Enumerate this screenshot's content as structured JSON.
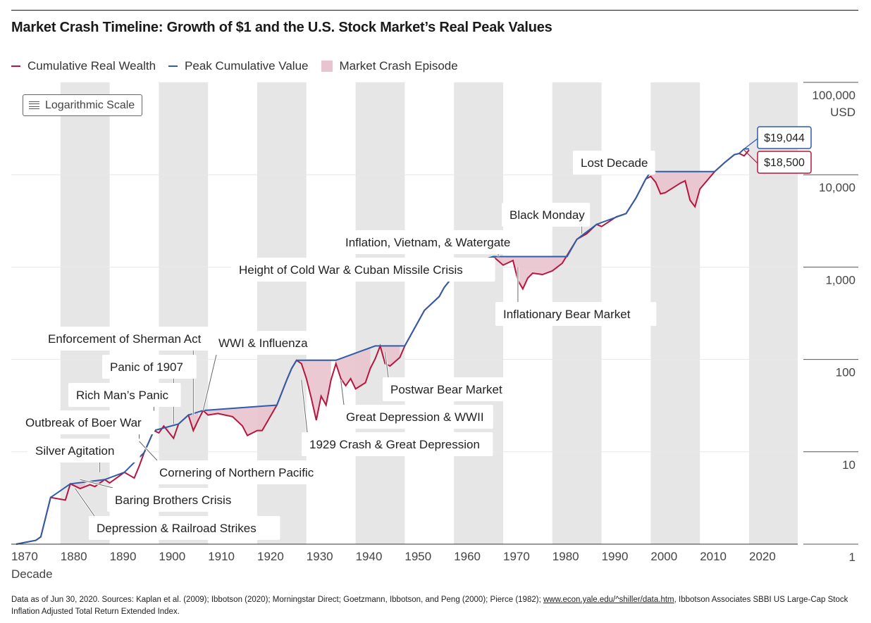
{
  "title": "Market Crash Timeline: Growth of $1 and the U.S. Stock Market’s Real Peak Values",
  "legend": [
    {
      "label": "Cumulative Real Wealth",
      "color": "#b5163f",
      "kind": "line"
    },
    {
      "label": "Peak Cumulative Value",
      "color": "#2f5ca8",
      "kind": "line"
    },
    {
      "label": "Market Crash Episode",
      "color": "#e9c3cd",
      "kind": "box"
    }
  ],
  "scale_button": {
    "label": "Logarithmic Scale",
    "icon": "list-icon"
  },
  "footnote": {
    "text_before": "Data as of Jun 30, 2020. Sources: Kaplan et al. (2009); Ibbotson (2020); Morningstar Direct; Goetzmann, Ibbotson, and Peng (2000); Pierce (1982); ",
    "link": "www.econ.yale.edu/^shiller/data.htm",
    "text_after": ", Ibbotson Associates SBBI US Large-Cap Stock Inflation Adjusted Total Return Extended Index."
  },
  "chart_data": {
    "type": "line",
    "y_scale": "log",
    "ylim": [
      1,
      100000
    ],
    "xlim": [
      1870,
      2030
    ],
    "xlabel": "Decade",
    "ylabel_unit": "USD",
    "x_ticks": [
      "1870",
      "1880",
      "1890",
      "1900",
      "1910",
      "1920",
      "1930",
      "1940",
      "1950",
      "1960",
      "1970",
      "1980",
      "1990",
      "2000",
      "2010",
      "2020"
    ],
    "y_ticks": [
      {
        "value": 1,
        "label": "1"
      },
      {
        "value": 10,
        "label": "10"
      },
      {
        "value": 100,
        "label": "100"
      },
      {
        "value": 1000,
        "label": "1,000"
      },
      {
        "value": 10000,
        "label": "10,000"
      },
      {
        "value": 100000,
        "label": "100,000"
      }
    ],
    "grid": "horizontal",
    "legend_position": "top-left",
    "colors": {
      "wealth": "#b5163f",
      "peak": "#2f5ca8",
      "crash": "#e9c3cd",
      "decade_band": "#e6e6e6"
    },
    "series": [
      {
        "name": "Cumulative Real Wealth",
        "key": "wealth",
        "x": [
          1871,
          1873,
          1875,
          1876,
          1878,
          1881,
          1882,
          1884,
          1886,
          1887,
          1889,
          1890,
          1893,
          1895,
          1896,
          1897,
          1899,
          1900,
          1901,
          1903,
          1904,
          1906,
          1907,
          1908,
          1909,
          1910,
          1912,
          1915,
          1917,
          1918,
          1920,
          1921,
          1924,
          1926,
          1927,
          1928,
          1929,
          1930,
          1931,
          1932,
          1933,
          1934,
          1935,
          1936,
          1937,
          1938,
          1939,
          1940,
          1942,
          1943,
          1944,
          1945,
          1946,
          1947,
          1949,
          1950,
          1954,
          1957,
          1958,
          1961,
          1962,
          1964,
          1966,
          1968,
          1969,
          1970,
          1972,
          1973,
          1974,
          1975,
          1976,
          1978,
          1980,
          1982,
          1985,
          1987,
          1989,
          1990,
          1993,
          1995,
          1997,
          1999,
          2000,
          2001,
          2002,
          2003,
          2006,
          2007,
          2008,
          2009,
          2010,
          2013,
          2015,
          2017,
          2018,
          2019,
          2020
        ],
        "y": [
          1.0,
          1.05,
          1.1,
          1.2,
          3.2,
          3.0,
          4.5,
          4.0,
          4.4,
          4.2,
          5.0,
          4.6,
          6.0,
          5.2,
          7.0,
          9.8,
          17.0,
          16.0,
          19.0,
          14.0,
          20.0,
          25.0,
          17.0,
          22.0,
          28.0,
          25.0,
          26.0,
          24.0,
          19.0,
          15.0,
          17.0,
          17.0,
          32.0,
          60.0,
          80.0,
          98.0,
          90.0,
          62.0,
          38.0,
          22.0,
          40.0,
          32.0,
          60.0,
          90.0,
          62.0,
          52.0,
          62.0,
          48.0,
          56.0,
          80.0,
          102.0,
          140.0,
          90.0,
          85.0,
          105.0,
          140.0,
          340.0,
          480.0,
          600.0,
          950.0,
          800.0,
          1010.0,
          1200.0,
          1300.0,
          1170.0,
          1050.0,
          1180.0,
          720.0,
          580.0,
          760.0,
          860.0,
          830.0,
          910.0,
          1100.0,
          2000.0,
          2300.0,
          2900.0,
          2750.0,
          3500.0,
          3800.0,
          5600.0,
          9000.0,
          9600.0,
          8300.0,
          6200.0,
          6400.0,
          8100.0,
          8600.0,
          5300.0,
          4500.0,
          7000.0,
          10800.0,
          13500.0,
          16500.0,
          17000.0,
          16000.0,
          18500.0
        ]
      },
      {
        "name": "Peak Cumulative Value",
        "key": "peak",
        "x": [
          1871,
          1875,
          1876,
          1878,
          1882,
          1889,
          1893,
          1897,
          1899,
          1904,
          1906,
          1909,
          1924,
          1926,
          1927,
          1928,
          1929,
          1936,
          1944,
          1945,
          1946,
          1949,
          1950,
          1954,
          1957,
          1958,
          1961,
          1964,
          1966,
          1968,
          1972,
          1983,
          1985,
          1989,
          1995,
          1997,
          1999,
          2000,
          2013,
          2015,
          2017,
          2018,
          2019,
          2020
        ],
        "y": [
          1.0,
          1.1,
          1.2,
          3.2,
          4.5,
          5.0,
          6.0,
          9.8,
          17.0,
          20.0,
          25.0,
          28.0,
          32.0,
          60.0,
          80.0,
          98.0,
          98.0,
          98.0,
          140.0,
          140.0,
          140.0,
          140.0,
          140.0,
          340.0,
          480.0,
          600.0,
          950.0,
          1010.0,
          1200.0,
          1300.0,
          1300.0,
          1300.0,
          2000.0,
          2900.0,
          3800.0,
          5600.0,
          9000.0,
          10800.0,
          10800.0,
          13500.0,
          16500.0,
          17000.0,
          19044.0,
          19044.0
        ]
      }
    ],
    "crash_episodes": [
      {
        "name": "Depression & Railroad Strikes",
        "start": 1876,
        "end": 1878
      },
      {
        "name": "Baring Brothers Crisis",
        "start": 1882,
        "end": 1885
      },
      {
        "name": "Silver Agitation",
        "start": 1887,
        "end": 1889
      },
      {
        "name": "Cornering of Northern Pacific",
        "start": 1897,
        "end": 1899
      },
      {
        "name": "Rich Man's Panic",
        "start": 1901,
        "end": 1902
      },
      {
        "name": "Panic of 1907",
        "start": 1906,
        "end": 1908
      },
      {
        "name": "Enforcement of Sherman Act",
        "start": 1909,
        "end": 1910
      },
      {
        "name": "WWI & Influenza",
        "start": 1910,
        "end": 1924
      },
      {
        "name": "1929 Crash & Great Depression",
        "start": 1928,
        "end": 1935
      },
      {
        "name": "Great Depression & WWII",
        "start": 1936,
        "end": 1943
      },
      {
        "name": "Postwar Bear Market",
        "start": 1945,
        "end": 1949
      },
      {
        "name": "Height of Cold War & Cuban Missile Crisis",
        "start": 1961,
        "end": 1963
      },
      {
        "name": "Inflation, Vietnam, & Watergate",
        "start": 1968,
        "end": 1972
      },
      {
        "name": "Inflationary Bear Market",
        "start": 1972,
        "end": 1983
      },
      {
        "name": "Black Monday",
        "start": 1987,
        "end": 1989
      },
      {
        "name": "Lost Decade",
        "start": 2000,
        "end": 2013
      }
    ],
    "annotations": [
      {
        "label": "Lost Decade",
        "x": 2001,
        "y": 10800
      },
      {
        "label": "Black Monday",
        "x": 1986,
        "y": 2300
      },
      {
        "label": "Inflation, Vietnam, & Watergate",
        "x": 1969,
        "y": 1300
      },
      {
        "label": "Height of Cold War & Cuban Missile Crisis",
        "x": 1962,
        "y": 900
      },
      {
        "label": "Inflationary Bear Market",
        "x": 1973,
        "y": 1000
      },
      {
        "label": "Enforcement of Sherman Act",
        "x": 1907,
        "y": 25
      },
      {
        "label": "WWI & Influenza",
        "x": 1909,
        "y": 28
      },
      {
        "label": "Panic of 1907",
        "x": 1903,
        "y": 20
      },
      {
        "label": "Rich Man’s Panic",
        "x": 1899,
        "y": 17
      },
      {
        "label": "Outbreak of Boer War",
        "x": 1896,
        "y": 12
      },
      {
        "label": "Silver Agitation",
        "x": 1888,
        "y": 6
      },
      {
        "label": "Postwar Bear Market",
        "x": 1946,
        "y": 120
      },
      {
        "label": "Great Depression & WWII",
        "x": 1937,
        "y": 60
      },
      {
        "label": "1929 Crash & Great Depression",
        "x": 1929,
        "y": 60
      },
      {
        "label": "Cornering of Northern Pacific",
        "x": 1896,
        "y": 13
      },
      {
        "label": "Baring Brothers Crisis",
        "x": 1884,
        "y": 5
      },
      {
        "label": "Depression & Railroad Strikes",
        "x": 1883,
        "y": 4
      }
    ],
    "value_labels": [
      {
        "label": "$19,044",
        "series": "peak",
        "value": 19044
      },
      {
        "label": "$18,500",
        "series": "wealth",
        "value": 18500
      }
    ]
  }
}
